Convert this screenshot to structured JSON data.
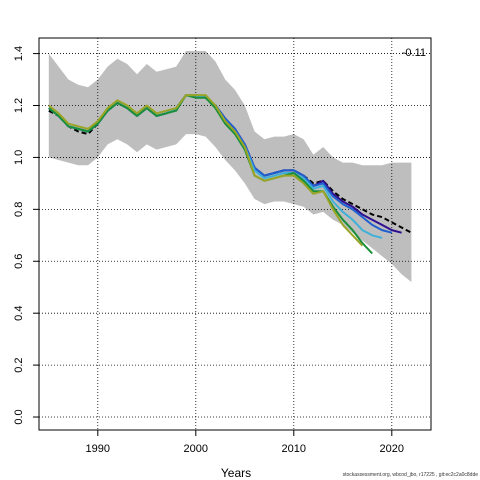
{
  "chart_data": {
    "type": "line",
    "xlabel": "Years",
    "ylabel": "",
    "xlim": [
      1984,
      2024
    ],
    "ylim": [
      -0.05,
      1.46
    ],
    "x_ticks": [
      1990,
      2000,
      2010,
      2020
    ],
    "y_ticks": [
      0.0,
      0.2,
      0.4,
      0.6,
      0.8,
      1.0,
      1.2,
      1.4
    ],
    "y_tick_labels": [
      "0.0",
      "0.2",
      "0.4",
      "0.6",
      "0.8",
      "1.0",
      "1.2",
      "1.4"
    ],
    "grid": true,
    "annotation": "-0.11",
    "footer": "stockassessment.org, wbcod_jbo, r17225 , git:ec2c2a0c8dde",
    "band": {
      "x": [
        1985,
        1986,
        1987,
        1988,
        1989,
        1990,
        1991,
        1992,
        1993,
        1994,
        1995,
        1996,
        1997,
        1998,
        1999,
        2000,
        2001,
        2002,
        2003,
        2004,
        2005,
        2006,
        2007,
        2008,
        2009,
        2010,
        2011,
        2012,
        2013,
        2014,
        2015,
        2016,
        2017,
        2018,
        2019,
        2020,
        2021,
        2022
      ],
      "upper": [
        1.4,
        1.35,
        1.3,
        1.28,
        1.27,
        1.3,
        1.35,
        1.38,
        1.36,
        1.32,
        1.36,
        1.33,
        1.34,
        1.35,
        1.41,
        1.41,
        1.41,
        1.37,
        1.3,
        1.26,
        1.2,
        1.1,
        1.07,
        1.08,
        1.08,
        1.09,
        1.07,
        1.01,
        1.04,
        1.0,
        0.98,
        0.98,
        0.97,
        0.97,
        0.97,
        0.98,
        0.98,
        0.98
      ],
      "lower": [
        1.0,
        0.99,
        0.98,
        0.97,
        0.97,
        1.0,
        1.05,
        1.07,
        1.05,
        1.02,
        1.05,
        1.03,
        1.04,
        1.05,
        1.09,
        1.09,
        1.08,
        1.04,
        0.99,
        0.95,
        0.9,
        0.84,
        0.82,
        0.83,
        0.83,
        0.82,
        0.81,
        0.78,
        0.79,
        0.76,
        0.74,
        0.71,
        0.68,
        0.65,
        0.62,
        0.59,
        0.55,
        0.52
      ]
    },
    "series": [
      {
        "color": "#000000",
        "dashed": true,
        "x": [
          1985,
          1986,
          1987,
          1988,
          1989,
          1990,
          1991,
          1992,
          1993,
          1994,
          1995,
          1996,
          1997,
          1998,
          1999,
          2000,
          2001,
          2002,
          2003,
          2004,
          2005,
          2006,
          2007,
          2008,
          2009,
          2010,
          2011,
          2012,
          2013,
          2014,
          2015,
          2016,
          2017,
          2018,
          2019,
          2020,
          2021,
          2022
        ],
        "y": [
          1.18,
          1.16,
          1.12,
          1.1,
          1.09,
          1.13,
          1.18,
          1.21,
          1.19,
          1.16,
          1.19,
          1.16,
          1.17,
          1.19,
          1.24,
          1.24,
          1.23,
          1.2,
          1.15,
          1.1,
          1.05,
          0.96,
          0.93,
          0.94,
          0.95,
          0.95,
          0.93,
          0.9,
          0.91,
          0.87,
          0.84,
          0.82,
          0.8,
          0.78,
          0.77,
          0.75,
          0.73,
          0.71
        ]
      },
      {
        "color": "#2f0f8f",
        "dashed": false,
        "x": [
          1985,
          1986,
          1987,
          1988,
          1989,
          1990,
          1991,
          1992,
          1993,
          1994,
          1995,
          1996,
          1997,
          1998,
          1999,
          2000,
          2001,
          2002,
          2003,
          2004,
          2005,
          2006,
          2007,
          2008,
          2009,
          2010,
          2011,
          2012,
          2013,
          2014,
          2015,
          2016,
          2017,
          2018,
          2019,
          2020,
          2021
        ],
        "y": [
          1.19,
          1.16,
          1.12,
          1.11,
          1.1,
          1.13,
          1.18,
          1.21,
          1.19,
          1.16,
          1.19,
          1.16,
          1.17,
          1.19,
          1.24,
          1.24,
          1.23,
          1.2,
          1.15,
          1.11,
          1.05,
          0.96,
          0.93,
          0.94,
          0.95,
          0.95,
          0.93,
          0.89,
          0.91,
          0.86,
          0.83,
          0.81,
          0.78,
          0.76,
          0.74,
          0.72,
          0.71
        ]
      },
      {
        "color": "#1f5fd0",
        "dashed": false,
        "x": [
          1985,
          1986,
          1987,
          1988,
          1989,
          1990,
          1991,
          1992,
          1993,
          1994,
          1995,
          1996,
          1997,
          1998,
          1999,
          2000,
          2001,
          2002,
          2003,
          2004,
          2005,
          2006,
          2007,
          2008,
          2009,
          2010,
          2011,
          2012,
          2013,
          2014,
          2015,
          2016,
          2017,
          2018,
          2019,
          2020
        ],
        "y": [
          1.19,
          1.16,
          1.12,
          1.11,
          1.1,
          1.13,
          1.18,
          1.21,
          1.19,
          1.16,
          1.19,
          1.16,
          1.17,
          1.19,
          1.24,
          1.24,
          1.23,
          1.2,
          1.15,
          1.11,
          1.05,
          0.96,
          0.93,
          0.94,
          0.95,
          0.95,
          0.93,
          0.89,
          0.9,
          0.85,
          0.82,
          0.8,
          0.77,
          0.74,
          0.72,
          0.71
        ]
      },
      {
        "color": "#3fb0d8",
        "dashed": false,
        "x": [
          1985,
          1986,
          1987,
          1988,
          1989,
          1990,
          1991,
          1992,
          1993,
          1994,
          1995,
          1996,
          1997,
          1998,
          1999,
          2000,
          2001,
          2002,
          2003,
          2004,
          2005,
          2006,
          2007,
          2008,
          2009,
          2010,
          2011,
          2012,
          2013,
          2014,
          2015,
          2016,
          2017,
          2018,
          2019
        ],
        "y": [
          1.19,
          1.16,
          1.12,
          1.11,
          1.1,
          1.13,
          1.18,
          1.21,
          1.19,
          1.16,
          1.19,
          1.16,
          1.17,
          1.19,
          1.24,
          1.24,
          1.23,
          1.2,
          1.14,
          1.1,
          1.04,
          0.95,
          0.92,
          0.93,
          0.94,
          0.94,
          0.92,
          0.88,
          0.89,
          0.83,
          0.79,
          0.76,
          0.72,
          0.7,
          0.69
        ]
      },
      {
        "color": "#1a8f3a",
        "dashed": false,
        "x": [
          1985,
          1986,
          1987,
          1988,
          1989,
          1990,
          1991,
          1992,
          1993,
          1994,
          1995,
          1996,
          1997,
          1998,
          1999,
          2000,
          2001,
          2002,
          2003,
          2004,
          2005,
          2006,
          2007,
          2008,
          2009,
          2010,
          2011,
          2012,
          2013,
          2014,
          2015,
          2016,
          2017,
          2018
        ],
        "y": [
          1.19,
          1.16,
          1.12,
          1.11,
          1.1,
          1.13,
          1.18,
          1.21,
          1.19,
          1.16,
          1.19,
          1.16,
          1.17,
          1.18,
          1.24,
          1.23,
          1.23,
          1.19,
          1.13,
          1.09,
          1.03,
          0.93,
          0.91,
          0.92,
          0.93,
          0.94,
          0.91,
          0.87,
          0.87,
          0.81,
          0.76,
          0.72,
          0.67,
          0.63
        ]
      },
      {
        "color": "#9aa526",
        "dashed": false,
        "x": [
          1985,
          1986,
          1987,
          1988,
          1989,
          1990,
          1991,
          1992,
          1993,
          1994,
          1995,
          1996,
          1997,
          1998,
          1999,
          2000,
          2001,
          2002,
          2003,
          2004,
          2005,
          2006,
          2007,
          2008,
          2009,
          2010,
          2011,
          2012,
          2013,
          2014,
          2015,
          2016,
          2017
        ],
        "y": [
          1.2,
          1.17,
          1.13,
          1.12,
          1.11,
          1.14,
          1.19,
          1.22,
          1.2,
          1.17,
          1.2,
          1.17,
          1.18,
          1.19,
          1.24,
          1.24,
          1.24,
          1.2,
          1.14,
          1.1,
          1.04,
          0.93,
          0.91,
          0.92,
          0.93,
          0.93,
          0.9,
          0.86,
          0.87,
          0.8,
          0.74,
          0.7,
          0.66
        ]
      }
    ]
  }
}
